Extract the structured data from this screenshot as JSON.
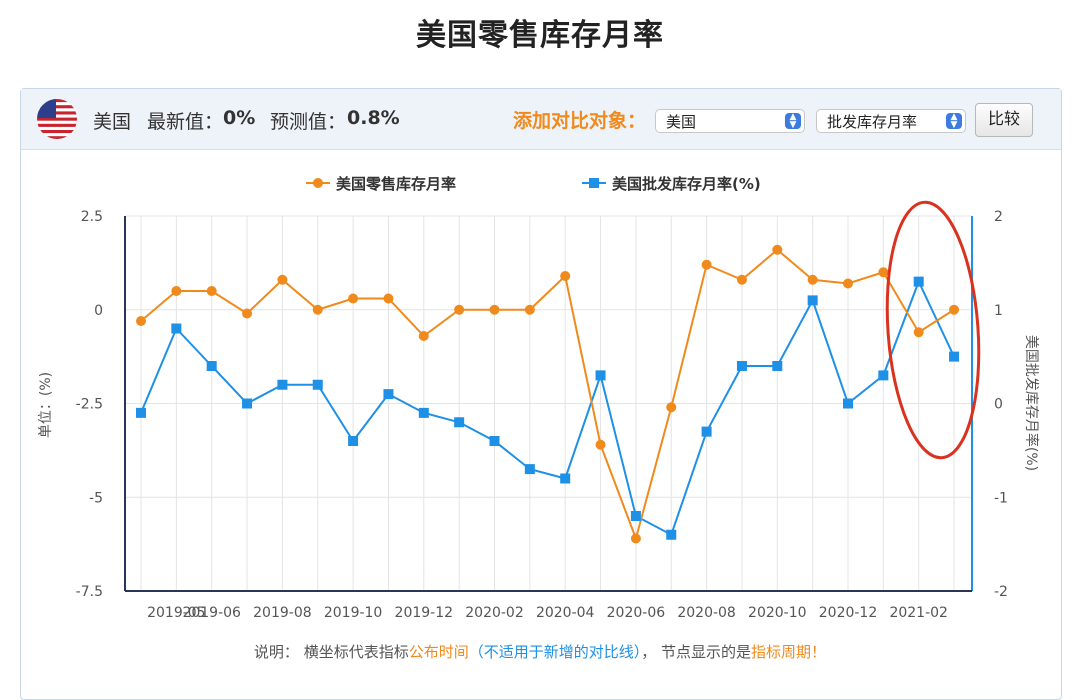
{
  "page": {
    "title": "美国零售库存月率"
  },
  "header": {
    "country": "美国",
    "latest_label": "最新值：",
    "latest_value": "0%",
    "forecast_label": "预测值：",
    "forecast_value": "0.8%",
    "compare_label": "添加对比对象：",
    "select_country": "美国",
    "select_indicator": "批发库存月率",
    "compare_button": "比较",
    "flag_icon": "us-flag-icon"
  },
  "colors": {
    "series1": "#f08a1c",
    "series2": "#1e90e6",
    "highlight": "#d9321e"
  },
  "chart_data": {
    "type": "line",
    "x_ticks": [
      "2019-05",
      "2019-06",
      "2019-08",
      "2019-10",
      "2019-12",
      "2020-02",
      "2020-04",
      "2020-06",
      "2020-08",
      "2020-10",
      "2020-12",
      "2021-02"
    ],
    "x": [
      "2019-04",
      "2019-05",
      "2019-06",
      "2019-07",
      "2019-08",
      "2019-09",
      "2019-10",
      "2019-11",
      "2019-12",
      "2020-01",
      "2020-02",
      "2020-03",
      "2020-04",
      "2020-05",
      "2020-06",
      "2020-07",
      "2020-08",
      "2020-09",
      "2020-10",
      "2020-11",
      "2020-12",
      "2021-01",
      "2021-02",
      "2021-03"
    ],
    "series": [
      {
        "name": "美国零售库存月率",
        "axis": "left",
        "values": [
          -0.3,
          0.5,
          0.5,
          -0.1,
          0.8,
          0,
          0.3,
          0.3,
          -0.7,
          0,
          0,
          0,
          0.9,
          -3.6,
          -6.1,
          -2.6,
          1.2,
          0.8,
          1.6,
          0.8,
          0.7,
          1.0,
          -0.6,
          0
        ]
      },
      {
        "name": "美国批发库存月率(%)",
        "axis": "right",
        "values": [
          -0.1,
          0.8,
          0.4,
          0,
          0.2,
          0.2,
          -0.4,
          0.1,
          -0.1,
          -0.2,
          -0.4,
          -0.7,
          -0.8,
          0.3,
          -1.2,
          -1.4,
          -0.3,
          0.4,
          0.4,
          1.1,
          0,
          0.3,
          1.3,
          0.5
        ]
      }
    ],
    "y_left": {
      "label": "单位：(%)",
      "ticks": [
        "2.5",
        "0",
        "-2.5",
        "-5",
        "-7.5"
      ],
      "min": -7.5,
      "max": 2.5
    },
    "y_right": {
      "label": "美国批发库存月率(%)",
      "ticks": [
        "2",
        "1",
        "0",
        "-1",
        "-2"
      ],
      "min": -2,
      "max": 2
    },
    "legend_position": "top-center",
    "grid": true
  },
  "note": {
    "prefix": "说明：  横坐标代表指标",
    "time": "公布时间",
    "paren_open": "（",
    "not_applicable": "不适用于新增的对比线",
    "paren_close": "）",
    "middle": "， 节点显示的是",
    "period": "指标周期！"
  }
}
